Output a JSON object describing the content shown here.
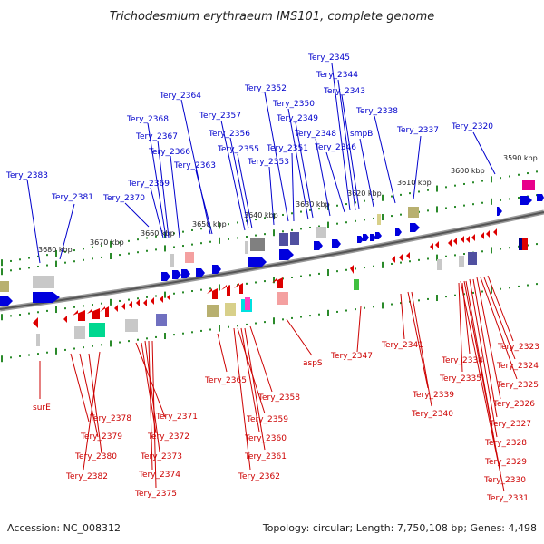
{
  "title": "Trichodesmium erythraeum IMS101, complete genome",
  "footer": {
    "accession": "Accession: NC_008312",
    "summary": "Topology: circular; Length: 7,750,108 bp; Genes: 4,498"
  },
  "colors": {
    "forward_label": "#0000cc",
    "reverse_label": "#cc0000",
    "backbone": "#777777",
    "ruler_dots": "#2a8a2a"
  },
  "ruler_labels": [
    "3590 kbp",
    "3600 kbp",
    "3610 kbp",
    "3620 kbp",
    "3630 kbp",
    "3640 kbp",
    "3650 kbp",
    "3660 kbp",
    "3670 kbp",
    "3680 kbp"
  ],
  "forward_genes": [
    "Tery_2383",
    "Tery_2381",
    "Tery_2370",
    "Tery_2369",
    "Tery_2368",
    "Tery_2367",
    "Tery_2366",
    "Tery_2364",
    "Tery_2363",
    "Tery_2357",
    "Tery_2356",
    "Tery_2355",
    "Tery_2353",
    "Tery_2352",
    "Tery_2351",
    "Tery_2350",
    "Tery_2349",
    "Tery_2348",
    "Tery_2346",
    "Tery_2345",
    "Tery_2344",
    "Tery_2343",
    "smpB",
    "Tery_2338",
    "Tery_2337",
    "Tery_2320"
  ],
  "reverse_genes": [
    "surE",
    "Tery_2378",
    "Tery_2379",
    "Tery_2380",
    "Tery_2382",
    "Tery_2371",
    "Tery_2372",
    "Tery_2373",
    "Tery_2374",
    "Tery_2375",
    "Tery_2365",
    "Tery_2358",
    "Tery_2359",
    "Tery_2360",
    "Tery_2361",
    "Tery_2362",
    "aspS",
    "Tery_2347",
    "Tery_2341",
    "Tery_2339",
    "Tery_2340",
    "Tery_2334",
    "Tery_2335",
    "Tery_2323",
    "Tery_2324",
    "Tery_2325",
    "Tery_2326",
    "Tery_2327",
    "Tery_2328",
    "Tery_2329",
    "Tery_2330",
    "Tery_2331"
  ]
}
